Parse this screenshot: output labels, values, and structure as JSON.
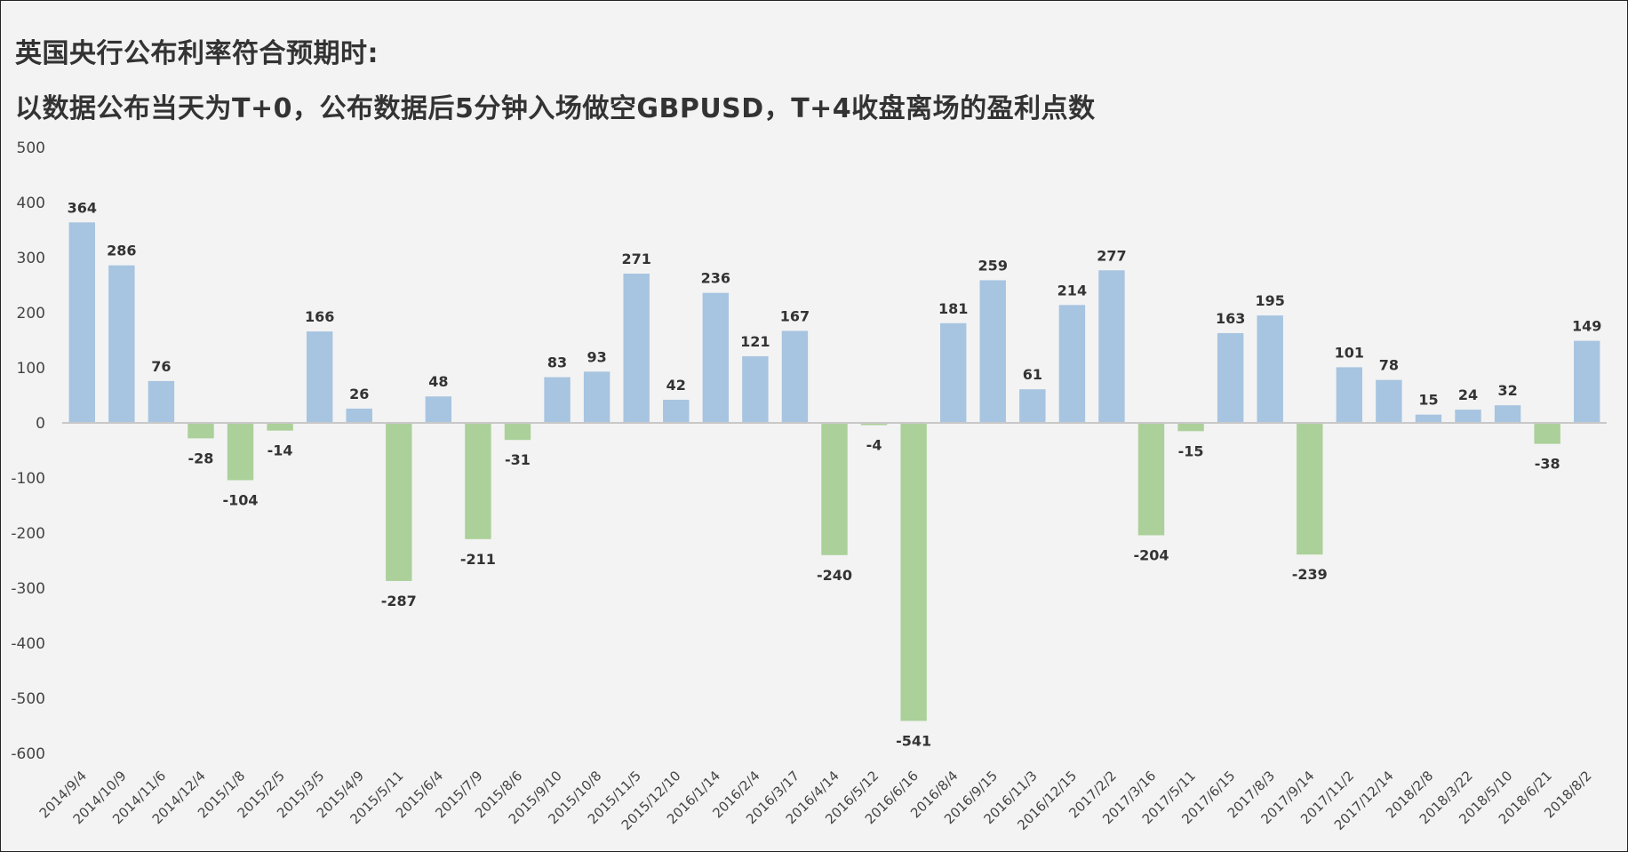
{
  "chart_data": {
    "type": "bar",
    "title": "英国央行公布利率符合预期时:",
    "subtitle": "以数据公布当天为T+0，公布数据后5分钟入场做空GBPUSD，T+4收盘离场的盈利点数",
    "ylim": [
      -600,
      500
    ],
    "yticks": [
      500,
      400,
      300,
      200,
      100,
      0,
      -100,
      -200,
      -300,
      -400,
      -500,
      -600
    ],
    "grid": false,
    "legend": "none",
    "categories": [
      "2014/9/4",
      "2014/10/9",
      "2014/11/6",
      "2014/12/4",
      "2015/1/8",
      "2015/2/5",
      "2015/3/5",
      "2015/4/9",
      "2015/5/11",
      "2015/6/4",
      "2015/7/9",
      "2015/8/6",
      "2015/9/10",
      "2015/10/8",
      "2015/11/5",
      "2015/12/10",
      "2016/1/14",
      "2016/2/4",
      "2016/3/17",
      "2016/4/14",
      "2016/5/12",
      "2016/6/16",
      "2016/8/4",
      "2016/9/15",
      "2016/11/3",
      "2016/12/15",
      "2017/2/2",
      "2017/3/16",
      "2017/5/11",
      "2017/6/15",
      "2017/8/3",
      "2017/9/14",
      "2017/11/2",
      "2017/12/14",
      "2018/2/8",
      "2018/3/22",
      "2018/5/10",
      "2018/6/21",
      "2018/8/2"
    ],
    "values": [
      364,
      286,
      76,
      -28,
      -104,
      -14,
      166,
      26,
      -287,
      48,
      -211,
      -31,
      83,
      93,
      271,
      42,
      236,
      121,
      167,
      -240,
      -4,
      -541,
      181,
      259,
      61,
      214,
      277,
      -204,
      -15,
      163,
      195,
      -239,
      101,
      78,
      15,
      24,
      32,
      -38,
      149
    ],
    "colors": {
      "positive": "#a7c4e0",
      "negative": "#abd09a",
      "axis": "#c8c8c8"
    }
  }
}
